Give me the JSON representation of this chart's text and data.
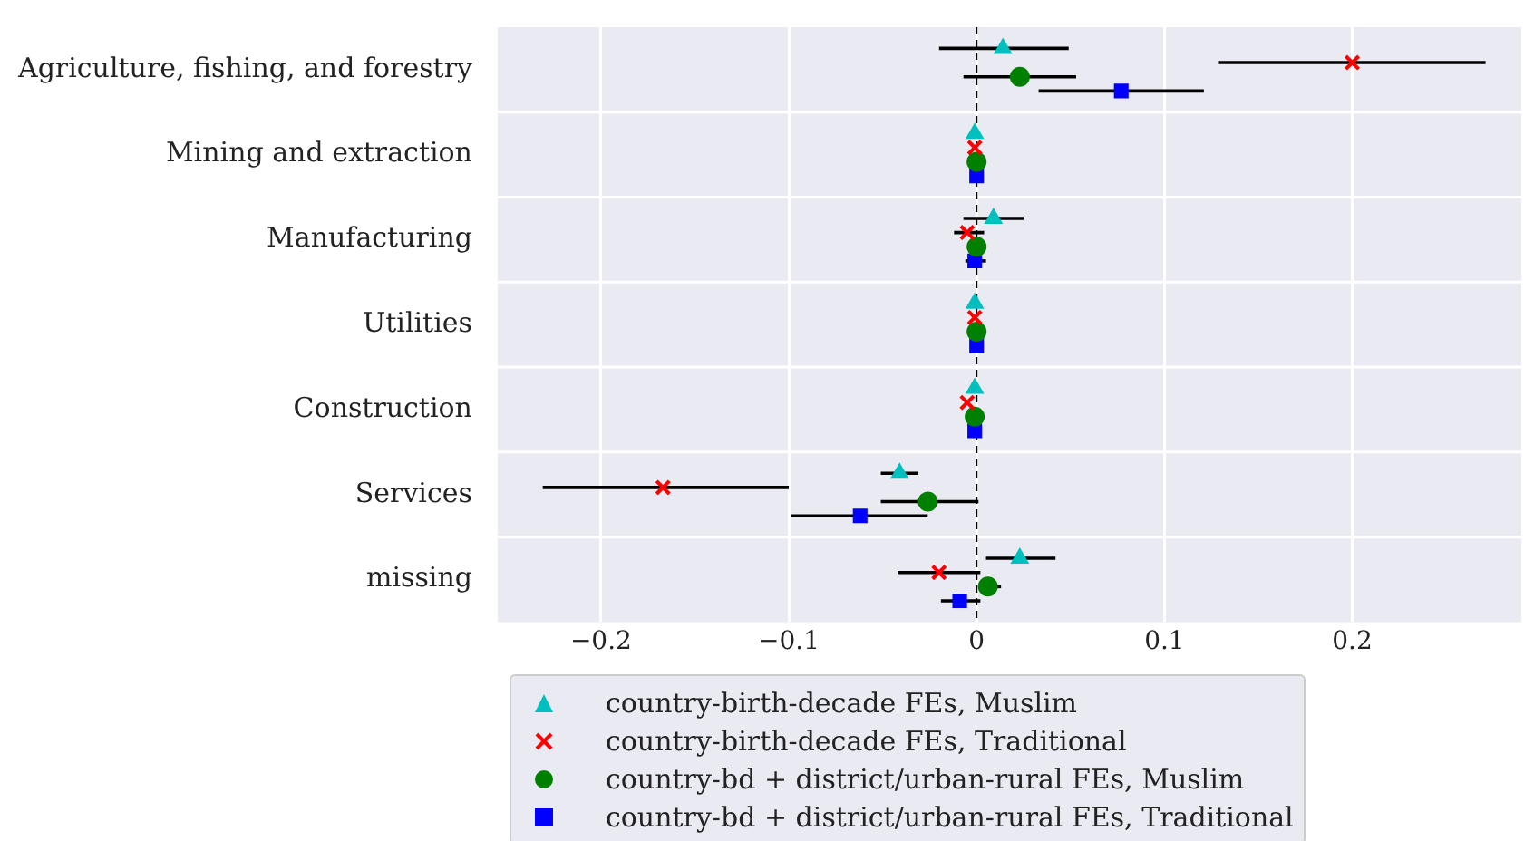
{
  "chart_data": {
    "type": "scatter",
    "orientation": "horizontal",
    "categories": [
      "Agriculture, fishing, and forestry",
      "Mining and extraction",
      "Manufacturing",
      "Utilities",
      "Construction",
      "Services",
      "missing"
    ],
    "series": [
      {
        "name": "country-birth-decade FEs, Muslim",
        "color": "#00bfbf",
        "marker": "triangle",
        "values": [
          0.014,
          -0.001,
          0.009,
          -0.001,
          -0.001,
          -0.041,
          0.023
        ],
        "errors": [
          [
            -0.02,
            0.049
          ],
          null,
          [
            -0.007,
            0.025
          ],
          null,
          null,
          [
            -0.051,
            -0.031
          ],
          [
            0.005,
            0.042
          ]
        ]
      },
      {
        "name": "country-birth-decade FEs, Traditional",
        "color": "#ff0000",
        "marker": "cross",
        "values": [
          0.2,
          -0.001,
          -0.005,
          -0.001,
          -0.005,
          -0.167,
          -0.02
        ],
        "errors": [
          [
            0.129,
            0.271
          ],
          null,
          [
            -0.012,
            0.004
          ],
          null,
          null,
          [
            -0.231,
            -0.1
          ],
          [
            -0.042,
            0.002
          ]
        ]
      },
      {
        "name": "country-bd + district/urban-rural FEs, Muslim",
        "color": "#008000",
        "marker": "circle",
        "values": [
          0.023,
          0.0,
          0.0,
          0.0,
          -0.001,
          -0.026,
          0.006
        ],
        "errors": [
          [
            -0.007,
            0.053
          ],
          null,
          null,
          null,
          null,
          [
            -0.051,
            0.001
          ],
          [
            0.001,
            0.013
          ]
        ]
      },
      {
        "name": "country-bd + district/urban-rural FEs, Traditional",
        "color": "#0000ff",
        "marker": "square",
        "values": [
          0.077,
          0.0,
          -0.001,
          0.0,
          -0.001,
          -0.062,
          -0.009
        ],
        "errors": [
          [
            0.033,
            0.121
          ],
          null,
          [
            -0.006,
            0.005
          ],
          null,
          null,
          [
            -0.099,
            -0.026
          ],
          [
            -0.019,
            0.002
          ]
        ]
      }
    ],
    "xlim": [
      -0.255,
      0.29
    ],
    "xticks": [
      {
        "value": -0.2,
        "label": "−0.2"
      },
      {
        "value": -0.1,
        "label": "−0.1"
      },
      0.0,
      0.1,
      0.2
    ],
    "ref_lines": [
      {
        "axis": "x",
        "value": 0,
        "color": "#000000",
        "line_style": "dashed"
      }
    ],
    "grid": true,
    "legend": "bottom"
  }
}
